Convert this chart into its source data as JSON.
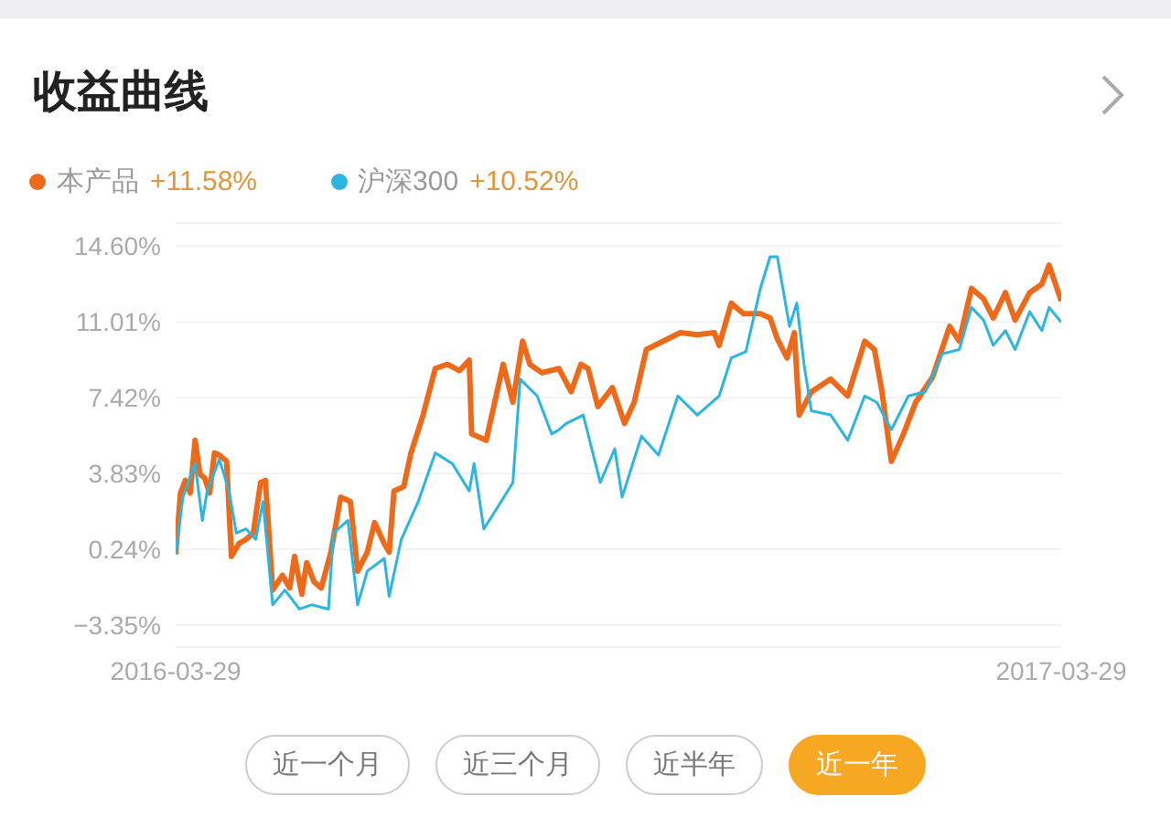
{
  "chart_data": {
    "type": "line",
    "title": "收益曲线",
    "annotations": [
      "+11.58%",
      "+10.52%",
      "近一个月",
      "近三个月",
      "近半年",
      "近一年"
    ],
    "xlim": [
      "2016-03-29",
      "2017-03-29"
    ],
    "xticks": [
      "2016-03-29",
      "2017-03-29"
    ],
    "ylim": [
      -4.4,
      15.7
    ],
    "yticks": [
      {
        "value": -3.35,
        "label": "−3.35%"
      },
      {
        "value": 0.24,
        "label": "0.24%"
      },
      {
        "value": 3.83,
        "label": "3.83%"
      },
      {
        "value": 7.42,
        "label": "7.42%"
      },
      {
        "value": 11.01,
        "label": "11.01%"
      },
      {
        "value": 14.6,
        "label": "14.60%"
      }
    ],
    "grid": "y",
    "legend": "top left",
    "marker": "none",
    "line_style": "solid",
    "series": [
      {
        "name": "本产品",
        "color": "#ee6a1b",
        "x": [
          "2016-03-29",
          "2016-03-31",
          "2016-04-02",
          "2016-04-04",
          "2016-04-06",
          "2016-04-08",
          "2016-04-10",
          "2016-04-12",
          "2016-04-14",
          "2016-04-16",
          "2016-04-19",
          "2016-04-21",
          "2016-04-24",
          "2016-04-27",
          "2016-04-30",
          "2016-05-03",
          "2016-05-05",
          "2016-05-08",
          "2016-05-12",
          "2016-05-15",
          "2016-05-17",
          "2016-05-20",
          "2016-05-22",
          "2016-05-25",
          "2016-05-28",
          "2016-06-01",
          "2016-06-05",
          "2016-06-09",
          "2016-06-12",
          "2016-06-16",
          "2016-06-19",
          "2016-06-23",
          "2016-06-25",
          "2016-06-27",
          "2016-07-01",
          "2016-07-04",
          "2016-07-09",
          "2016-07-14",
          "2016-07-19",
          "2016-07-24",
          "2016-07-28",
          "2016-07-29",
          "2016-08-04",
          "2016-08-11",
          "2016-08-15",
          "2016-08-19",
          "2016-08-22",
          "2016-08-27",
          "2016-09-03",
          "2016-09-08",
          "2016-09-12",
          "2016-09-15",
          "2016-09-19",
          "2016-09-25",
          "2016-09-30",
          "2016-10-04",
          "2016-10-09",
          "2016-10-16",
          "2016-10-23",
          "2016-10-30",
          "2016-11-06",
          "2016-11-08",
          "2016-11-13",
          "2016-11-18",
          "2016-11-25",
          "2016-11-29",
          "2016-12-02",
          "2016-12-06",
          "2016-12-09",
          "2016-12-11",
          "2016-12-16",
          "2016-12-24",
          "2016-12-31",
          "2017-01-07",
          "2017-01-11",
          "2017-01-14",
          "2017-01-18",
          "2017-01-23",
          "2017-01-28",
          "2017-02-04",
          "2017-02-11",
          "2017-02-15",
          "2017-02-20",
          "2017-02-25",
          "2017-03-01",
          "2017-03-06",
          "2017-03-10",
          "2017-03-16",
          "2017-03-21",
          "2017-03-24",
          "2017-03-29"
        ],
        "values": [
          0.0,
          2.9,
          3.5,
          2.9,
          5.4,
          3.8,
          3.6,
          2.9,
          4.8,
          4.7,
          4.4,
          -0.1,
          0.5,
          0.7,
          1.0,
          3.4,
          3.5,
          -1.7,
          -1.0,
          -1.6,
          -0.1,
          -1.9,
          -0.4,
          -1.3,
          -1.6,
          0.1,
          2.7,
          2.5,
          -0.8,
          0.1,
          1.5,
          0.5,
          0.1,
          3.0,
          3.2,
          4.8,
          6.6,
          8.8,
          9.0,
          8.7,
          9.2,
          5.7,
          5.4,
          9.0,
          7.2,
          10.1,
          9.0,
          8.6,
          8.8,
          7.7,
          9.0,
          8.8,
          7.0,
          7.9,
          6.2,
          7.2,
          9.7,
          10.1,
          10.5,
          10.4,
          10.5,
          9.9,
          11.9,
          11.4,
          11.4,
          11.2,
          10.2,
          9.3,
          10.5,
          6.6,
          7.7,
          8.3,
          7.5,
          10.1,
          9.7,
          7.8,
          4.4,
          5.7,
          7.2,
          8.4,
          10.8,
          10.1,
          12.6,
          12.1,
          11.2,
          12.4,
          11.1,
          12.4,
          12.8,
          13.7,
          12.0
        ]
      },
      {
        "name": "沪深300",
        "color": "#2bb5e0",
        "x": [
          "2016-03-29",
          "2016-04-01",
          "2016-04-06",
          "2016-04-09",
          "2016-04-11",
          "2016-04-16",
          "2016-04-20",
          "2016-04-23",
          "2016-04-27",
          "2016-05-01",
          "2016-05-04",
          "2016-05-08",
          "2016-05-13",
          "2016-05-19",
          "2016-05-24",
          "2016-05-31",
          "2016-06-02",
          "2016-06-08",
          "2016-06-12",
          "2016-06-16",
          "2016-06-23",
          "2016-06-25",
          "2016-06-30",
          "2016-07-07",
          "2016-07-14",
          "2016-07-21",
          "2016-07-28",
          "2016-07-30",
          "2016-08-03",
          "2016-08-08",
          "2016-08-15",
          "2016-08-18",
          "2016-08-25",
          "2016-08-31",
          "2016-09-03",
          "2016-09-06",
          "2016-09-13",
          "2016-09-20",
          "2016-09-26",
          "2016-09-29",
          "2016-10-07",
          "2016-10-14",
          "2016-10-22",
          "2016-10-30",
          "2016-11-08",
          "2016-11-13",
          "2016-11-19",
          "2016-11-25",
          "2016-11-29",
          "2016-12-02",
          "2016-12-07",
          "2016-12-10",
          "2016-12-13",
          "2016-12-16",
          "2016-12-24",
          "2016-12-31",
          "2017-01-07",
          "2017-01-12",
          "2017-01-18",
          "2017-01-25",
          "2017-02-01",
          "2017-02-08",
          "2017-02-15",
          "2017-02-20",
          "2017-02-25",
          "2017-03-01",
          "2017-03-06",
          "2017-03-10",
          "2017-03-16",
          "2017-03-21",
          "2017-03-24",
          "2017-03-29"
        ],
        "values": [
          0.0,
          2.7,
          4.3,
          1.6,
          3.0,
          4.5,
          3.0,
          1.0,
          1.2,
          0.7,
          2.5,
          -2.4,
          -1.7,
          -2.6,
          -2.4,
          -2.6,
          1.0,
          1.6,
          -2.4,
          -0.8,
          -0.2,
          -2.0,
          0.7,
          2.5,
          4.8,
          4.3,
          3.0,
          4.3,
          1.2,
          2.1,
          3.4,
          8.3,
          7.5,
          5.7,
          5.9,
          6.2,
          6.6,
          3.4,
          5.0,
          2.7,
          5.6,
          4.7,
          7.5,
          6.6,
          7.5,
          9.3,
          9.6,
          12.6,
          14.1,
          14.1,
          10.8,
          11.9,
          9.0,
          6.8,
          6.6,
          5.4,
          7.5,
          7.2,
          5.9,
          7.5,
          7.7,
          9.5,
          9.7,
          11.7,
          11.1,
          9.9,
          10.6,
          9.7,
          11.5,
          10.6,
          11.7,
          11.0
        ]
      }
    ]
  }
}
